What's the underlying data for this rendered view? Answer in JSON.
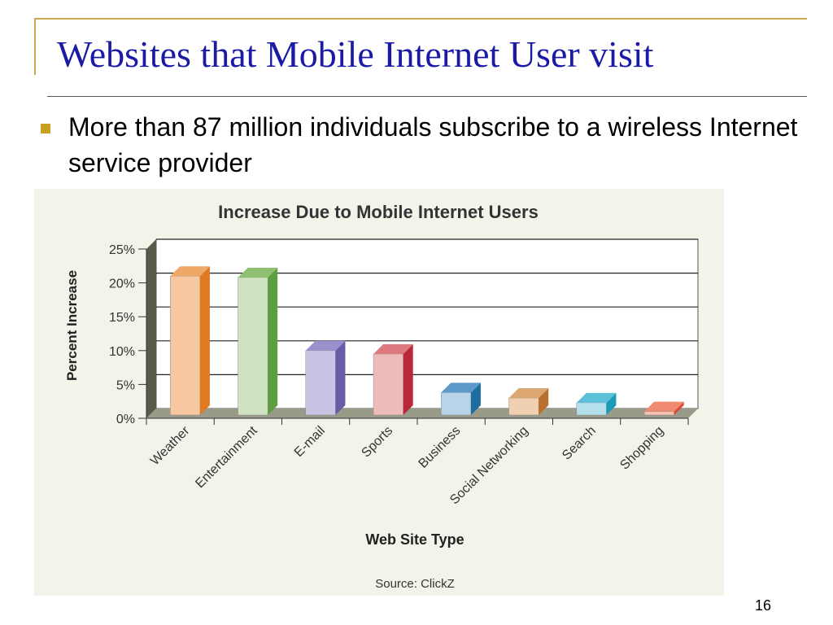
{
  "slide": {
    "title": "Websites that Mobile Internet User visit",
    "bullet": "More than 87 million individuals subscribe to a wireless Internet service provider",
    "page_number": "16"
  },
  "chart_data": {
    "type": "bar",
    "title": "Increase Due to Mobile Internet Users",
    "xlabel": "Web Site Type",
    "ylabel": "Percent Increase",
    "source": "Source: ClickZ",
    "ylim": [
      0,
      25
    ],
    "yticks": [
      "0%",
      "5%",
      "10%",
      "15%",
      "20%",
      "25%"
    ],
    "ytick_values": [
      0,
      5,
      10,
      15,
      20,
      25
    ],
    "grid": true,
    "categories": [
      "Weather",
      "Entertainment",
      "E-mail",
      "Sports",
      "Business",
      "Social Networking",
      "Search",
      "Shopping"
    ],
    "values": [
      21,
      20.8,
      10,
      9.5,
      3.8,
      3,
      2.3,
      1
    ],
    "colors": [
      {
        "face": "#f7c8a0",
        "side": "#e07a20",
        "top": "#f0a868"
      },
      {
        "face": "#cfe3c2",
        "side": "#5c9e40",
        "top": "#8fc070"
      },
      {
        "face": "#c8c4e4",
        "side": "#6a5aa8",
        "top": "#9a90cc"
      },
      {
        "face": "#eebcb8",
        "side": "#b8283a",
        "top": "#dc7a80"
      },
      {
        "face": "#b8d4e8",
        "side": "#1c6ea0",
        "top": "#5c98c8"
      },
      {
        "face": "#f0d0b0",
        "side": "#b8702c",
        "top": "#dca670"
      },
      {
        "face": "#b4e0ec",
        "side": "#1c9ab8",
        "top": "#5cc0d8"
      },
      {
        "face": "#f8c0b0",
        "side": "#e04a30",
        "top": "#f08a70"
      }
    ]
  }
}
